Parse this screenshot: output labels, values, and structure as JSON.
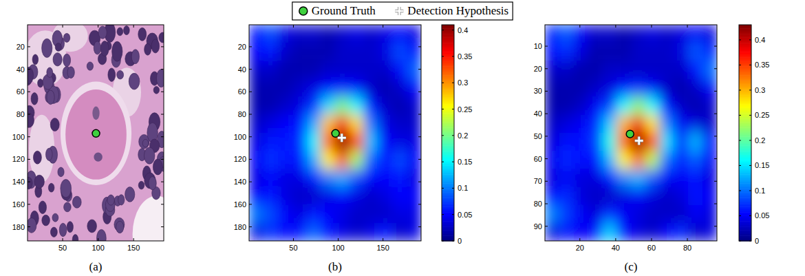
{
  "legend_entries": [
    {
      "name": "Ground Truth",
      "color": "#3fd13f",
      "marker": "circle"
    },
    {
      "name": "Detection Hypothesis",
      "color": "#ffffff",
      "marker": "cross"
    }
  ],
  "chart_data": [
    {
      "type": "image",
      "caption": "(a)",
      "xlim": [
        0.5,
        192.5
      ],
      "ylim": [
        0.5,
        192.5
      ],
      "xticks": [
        50,
        100,
        150
      ],
      "yticks": [
        20,
        40,
        60,
        80,
        100,
        120,
        140,
        160,
        180
      ],
      "ground_truth": {
        "x": 97,
        "y": 97
      }
    },
    {
      "type": "heatmap",
      "caption": "(b)",
      "xlim": [
        0.5,
        192.5
      ],
      "ylim": [
        0.5,
        192.5
      ],
      "xticks": [
        50,
        100,
        150
      ],
      "yticks": [
        20,
        40,
        60,
        80,
        100,
        120,
        140,
        160,
        180
      ],
      "ground_truth": {
        "x": 97,
        "y": 97
      },
      "detection_hypothesis": {
        "x": 104,
        "y": 101
      },
      "colorbar": {
        "lim": [
          0,
          0.41
        ],
        "ticks": [
          0,
          0.05,
          0.1,
          0.15,
          0.2,
          0.25,
          0.3,
          0.35,
          0.4
        ]
      },
      "cells": [
        [
          0.06,
          0.08,
          0.04,
          0.03,
          0.03,
          0.02,
          0.03,
          0.04,
          0.03,
          0.04,
          0.05,
          0.04
        ],
        [
          0.05,
          0.06,
          0.03,
          0.02,
          0.02,
          0.02,
          0.03,
          0.03,
          0.03,
          0.04,
          0.08,
          0.06
        ],
        [
          0.03,
          0.03,
          0.02,
          0.02,
          0.02,
          0.03,
          0.03,
          0.03,
          0.03,
          0.03,
          0.05,
          0.09
        ],
        [
          0.02,
          0.02,
          0.02,
          0.03,
          0.04,
          0.05,
          0.06,
          0.05,
          0.03,
          0.02,
          0.03,
          0.05
        ],
        [
          0.02,
          0.02,
          0.03,
          0.04,
          0.07,
          0.14,
          0.2,
          0.15,
          0.06,
          0.03,
          0.02,
          0.03
        ],
        [
          0.03,
          0.04,
          0.05,
          0.06,
          0.12,
          0.28,
          0.36,
          0.27,
          0.1,
          0.04,
          0.03,
          0.03
        ],
        [
          0.04,
          0.06,
          0.06,
          0.07,
          0.15,
          0.32,
          0.41,
          0.35,
          0.13,
          0.05,
          0.04,
          0.04
        ],
        [
          0.05,
          0.07,
          0.06,
          0.06,
          0.12,
          0.26,
          0.32,
          0.22,
          0.09,
          0.06,
          0.08,
          0.05
        ],
        [
          0.04,
          0.05,
          0.04,
          0.04,
          0.06,
          0.1,
          0.12,
          0.08,
          0.05,
          0.05,
          0.06,
          0.04
        ],
        [
          0.05,
          0.06,
          0.04,
          0.03,
          0.03,
          0.04,
          0.05,
          0.04,
          0.03,
          0.04,
          0.05,
          0.05
        ],
        [
          0.1,
          0.08,
          0.05,
          0.04,
          0.06,
          0.05,
          0.04,
          0.03,
          0.03,
          0.03,
          0.04,
          0.04
        ],
        [
          0.04,
          0.07,
          0.05,
          0.06,
          0.09,
          0.06,
          0.04,
          0.03,
          0.04,
          0.06,
          0.03,
          0.04
        ]
      ]
    },
    {
      "type": "heatmap",
      "caption": "(c)",
      "xlim": [
        0.5,
        96.5
      ],
      "ylim": [
        0.5,
        96.5
      ],
      "xticks": [
        20,
        40,
        60,
        80
      ],
      "yticks": [
        10,
        20,
        30,
        40,
        50,
        60,
        70,
        80,
        90
      ],
      "ground_truth": {
        "x": 48,
        "y": 49
      },
      "detection_hypothesis": {
        "x": 53,
        "y": 52
      },
      "colorbar": {
        "lim": [
          0,
          0.43
        ],
        "ticks": [
          0,
          0.05,
          0.1,
          0.15,
          0.2,
          0.25,
          0.3,
          0.35,
          0.4
        ]
      },
      "cells": [
        [
          0.07,
          0.09,
          0.05,
          0.03,
          0.03,
          0.02,
          0.03,
          0.04,
          0.03,
          0.04,
          0.05,
          0.04
        ],
        [
          0.06,
          0.07,
          0.04,
          0.02,
          0.02,
          0.02,
          0.03,
          0.03,
          0.03,
          0.04,
          0.09,
          0.07
        ],
        [
          0.03,
          0.03,
          0.02,
          0.02,
          0.03,
          0.03,
          0.03,
          0.03,
          0.03,
          0.03,
          0.06,
          0.1
        ],
        [
          0.02,
          0.02,
          0.02,
          0.03,
          0.04,
          0.06,
          0.07,
          0.05,
          0.03,
          0.02,
          0.03,
          0.05
        ],
        [
          0.02,
          0.02,
          0.03,
          0.05,
          0.08,
          0.16,
          0.22,
          0.16,
          0.06,
          0.03,
          0.02,
          0.03
        ],
        [
          0.03,
          0.04,
          0.05,
          0.07,
          0.14,
          0.3,
          0.38,
          0.28,
          0.11,
          0.05,
          0.04,
          0.03
        ],
        [
          0.04,
          0.06,
          0.06,
          0.08,
          0.17,
          0.34,
          0.42,
          0.36,
          0.15,
          0.08,
          0.13,
          0.06
        ],
        [
          0.05,
          0.07,
          0.06,
          0.06,
          0.13,
          0.27,
          0.33,
          0.24,
          0.1,
          0.07,
          0.09,
          0.05
        ],
        [
          0.04,
          0.05,
          0.04,
          0.04,
          0.06,
          0.11,
          0.13,
          0.09,
          0.05,
          0.05,
          0.06,
          0.04
        ],
        [
          0.06,
          0.07,
          0.04,
          0.03,
          0.03,
          0.04,
          0.05,
          0.04,
          0.03,
          0.04,
          0.06,
          0.05
        ],
        [
          0.11,
          0.08,
          0.05,
          0.04,
          0.07,
          0.05,
          0.04,
          0.03,
          0.03,
          0.03,
          0.05,
          0.04
        ],
        [
          0.04,
          0.06,
          0.05,
          0.06,
          0.14,
          0.06,
          0.04,
          0.03,
          0.05,
          0.07,
          0.03,
          0.04
        ]
      ]
    }
  ]
}
